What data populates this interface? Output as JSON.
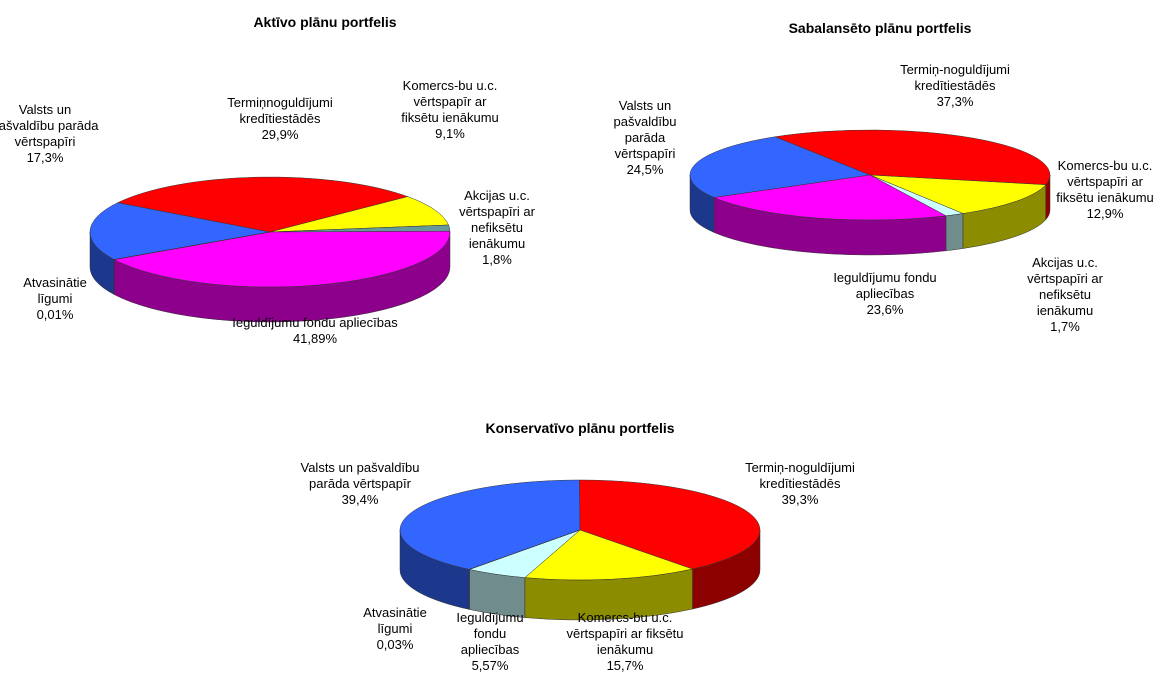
{
  "chart_data": [
    {
      "type": "pie",
      "title": "Aktīvo plānu portfelis",
      "categories": [
        "Valsts un pašvaldību parāda vērtspapīri",
        "Termiņnoguldījumi kredītiestādēs",
        "Komercs-bu u.c. vērtspapīr ar fiksētu ienākumu",
        "Akcijas u.c. vērtspapīri ar nefiksētu ienākumu",
        "Ieguldījumu fondu apliecības",
        "Atvasinātie līgumi"
      ],
      "values": [
        17.3,
        29.9,
        9.1,
        1.8,
        41.89,
        0.01
      ],
      "value_labels": [
        "17,3%",
        "29,9%",
        "9,1%",
        "1,8%",
        "41,89%",
        "0,01%"
      ],
      "colors": [
        "#3366ff",
        "#ff0000",
        "#ffff00",
        "#669999",
        "#ff00ff",
        "#993333"
      ]
    },
    {
      "type": "pie",
      "title": "Sabalansēto plānu portfelis",
      "categories": [
        "Valsts un pašvaldību parāda vērtspapīri",
        "Termiņ-noguldījumi kredītiestādēs",
        "Komercs-bu u.c. vērtspapīri ar fiksētu ienākumu",
        "Akcijas u.c. vērtspapīri ar nefiksētu ienākumu",
        "Ieguldījumu fondu apliecības"
      ],
      "values": [
        24.5,
        37.3,
        12.9,
        1.7,
        23.6
      ],
      "value_labels": [
        "24,5%",
        "37,3%",
        "12,9%",
        "1,7%",
        "23,6%"
      ],
      "colors": [
        "#3366ff",
        "#ff0000",
        "#ffff00",
        "#ccffff",
        "#ff00ff"
      ]
    },
    {
      "type": "pie",
      "title": "Konservatīvo plānu portfelis",
      "categories": [
        "Valsts un pašvaldību parāda vērtspapīr",
        "Termiņ-noguldījumi kredītiestādēs",
        "Komercs-bu u.c. vērtspapīri ar fiksētu ienākumu",
        "Ieguldījumu fondu apliecības",
        "Atvasinātie līgumi"
      ],
      "values": [
        39.4,
        39.3,
        15.7,
        5.57,
        0.03
      ],
      "value_labels": [
        "39,4%",
        "39,3%",
        "15,7%",
        "5,57%",
        "0,03%"
      ],
      "colors": [
        "#3366ff",
        "#ff0000",
        "#ffff00",
        "#ccffff",
        "#ff00ff"
      ]
    }
  ]
}
